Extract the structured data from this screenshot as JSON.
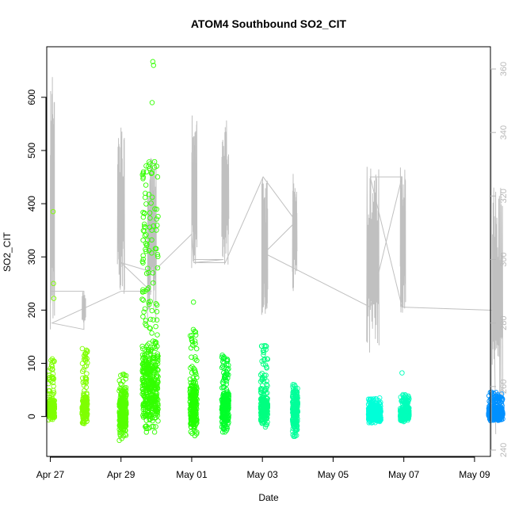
{
  "chart_data": {
    "type": "scatter",
    "title": "ATOM4 Southbound SO2_CIT",
    "xlabel": "Date",
    "ylabel": "SO2_CIT",
    "xlim": [
      -0.1,
      12.45
    ],
    "ylim": [
      -75,
      695
    ],
    "y2lim": [
      238,
      367
    ],
    "x_tick_values": [
      0,
      2,
      4,
      6,
      8,
      10,
      12
    ],
    "x_tick_labels": [
      "Apr 27",
      "Apr 29",
      "May 01",
      "May 03",
      "May 05",
      "May 07",
      "May 09"
    ],
    "y_ticks": [
      0,
      100,
      200,
      300,
      400,
      500,
      600
    ],
    "y2_ticks": [
      240,
      260,
      280,
      300,
      320,
      340,
      360
    ],
    "colors": {
      "scatter_start": "#7fff00",
      "scatter_mid": "#00ffaa",
      "scatter_end": "#0090ff",
      "line": "#c0c0c0",
      "right_axis": "#b8b8b8"
    },
    "scatter_clusters": [
      {
        "x_start": -0.05,
        "x_end": 0.12,
        "y_min": -10,
        "y_max": 110,
        "color": "#7fff00",
        "outliers": [
          {
            "x": 0.08,
            "y": 385
          },
          {
            "x": 0.09,
            "y": 250
          },
          {
            "x": 0.1,
            "y": 222
          }
        ]
      },
      {
        "x_start": 0.9,
        "x_end": 1.05,
        "y_min": -15,
        "y_max": 128,
        "color": "#7fff00",
        "outliers": []
      },
      {
        "x_start": 1.95,
        "x_end": 2.15,
        "y_min": -45,
        "y_max": 80,
        "color": "#55ff00",
        "outliers": []
      },
      {
        "x_start": 2.6,
        "x_end": 3.05,
        "y_min": -30,
        "y_max": 480,
        "color": "#33ff00",
        "outliers": [
          {
            "x": 2.9,
            "y": 667
          },
          {
            "x": 2.92,
            "y": 660
          },
          {
            "x": 2.88,
            "y": 590
          },
          {
            "x": 2.9,
            "y": 270
          }
        ]
      },
      {
        "x_start": 3.95,
        "x_end": 4.15,
        "y_min": -40,
        "y_max": 165,
        "color": "#22ff00",
        "outliers": [
          {
            "x": 4.05,
            "y": 215
          }
        ]
      },
      {
        "x_start": 4.85,
        "x_end": 5.05,
        "y_min": -35,
        "y_max": 118,
        "color": "#00ff2a",
        "outliers": []
      },
      {
        "x_start": 5.95,
        "x_end": 6.15,
        "y_min": -20,
        "y_max": 137,
        "color": "#00ff80",
        "outliers": []
      },
      {
        "x_start": 6.85,
        "x_end": 7.0,
        "y_min": -38,
        "y_max": 70,
        "color": "#00ff9a",
        "outliers": []
      },
      {
        "x_start": 9.0,
        "x_end": 9.35,
        "y_min": -12,
        "y_max": 35,
        "color": "#00ffd8",
        "outliers": []
      },
      {
        "x_start": 9.9,
        "x_end": 10.15,
        "y_min": -10,
        "y_max": 42,
        "color": "#00ffbb",
        "outliers": [
          {
            "x": 9.95,
            "y": 82
          }
        ]
      },
      {
        "x_start": 12.4,
        "x_end": 12.8,
        "y_min": -8,
        "y_max": 47,
        "color": "#0090ff",
        "outliers": []
      }
    ],
    "line_segments": [
      {
        "x_start": 0.0,
        "x_end": 0.12,
        "y_low": 278,
        "y_high": 359
      },
      {
        "x_start": 0.9,
        "x_end": 1.0,
        "y_low": 280,
        "y_high": 290
      },
      {
        "x_start": 1.9,
        "x_end": 2.1,
        "y_low": 289,
        "y_high": 343
      },
      {
        "x_start": 2.75,
        "x_end": 3.0,
        "y_low": 280,
        "y_high": 332
      },
      {
        "x_start": 4.0,
        "x_end": 4.15,
        "y_low": 295,
        "y_high": 346
      },
      {
        "x_start": 4.85,
        "x_end": 5.05,
        "y_low": 298,
        "y_high": 345
      },
      {
        "x_start": 5.98,
        "x_end": 6.15,
        "y_low": 282,
        "y_high": 326
      },
      {
        "x_start": 6.85,
        "x_end": 6.98,
        "y_low": 290,
        "y_high": 327
      },
      {
        "x_start": 8.95,
        "x_end": 9.3,
        "y_low": 266,
        "y_high": 331
      },
      {
        "x_start": 9.9,
        "x_end": 10.05,
        "y_low": 283,
        "y_high": 329
      },
      {
        "x_start": 12.5,
        "x_end": 12.8,
        "y_low": 251,
        "y_high": 324
      }
    ],
    "line_connectors": [
      [
        0.0,
        290
      ],
      [
        0.95,
        290
      ],
      [
        0.95,
        278
      ],
      [
        0.05,
        280
      ],
      [
        2.0,
        290
      ],
      [
        2.85,
        290
      ],
      [
        2.0,
        299
      ],
      [
        2.9,
        296
      ],
      [
        4.0,
        308
      ],
      [
        4.05,
        300
      ],
      [
        4.9,
        300
      ],
      [
        4.05,
        299
      ],
      [
        4.95,
        299
      ],
      [
        6.02,
        326
      ],
      [
        6.95,
        312
      ],
      [
        6.05,
        302
      ],
      [
        9.05,
        285
      ],
      [
        9.95,
        326
      ],
      [
        9.05,
        326
      ],
      [
        9.95,
        285
      ],
      [
        12.55,
        284
      ],
      [
        12.6,
        245
      ]
    ]
  }
}
